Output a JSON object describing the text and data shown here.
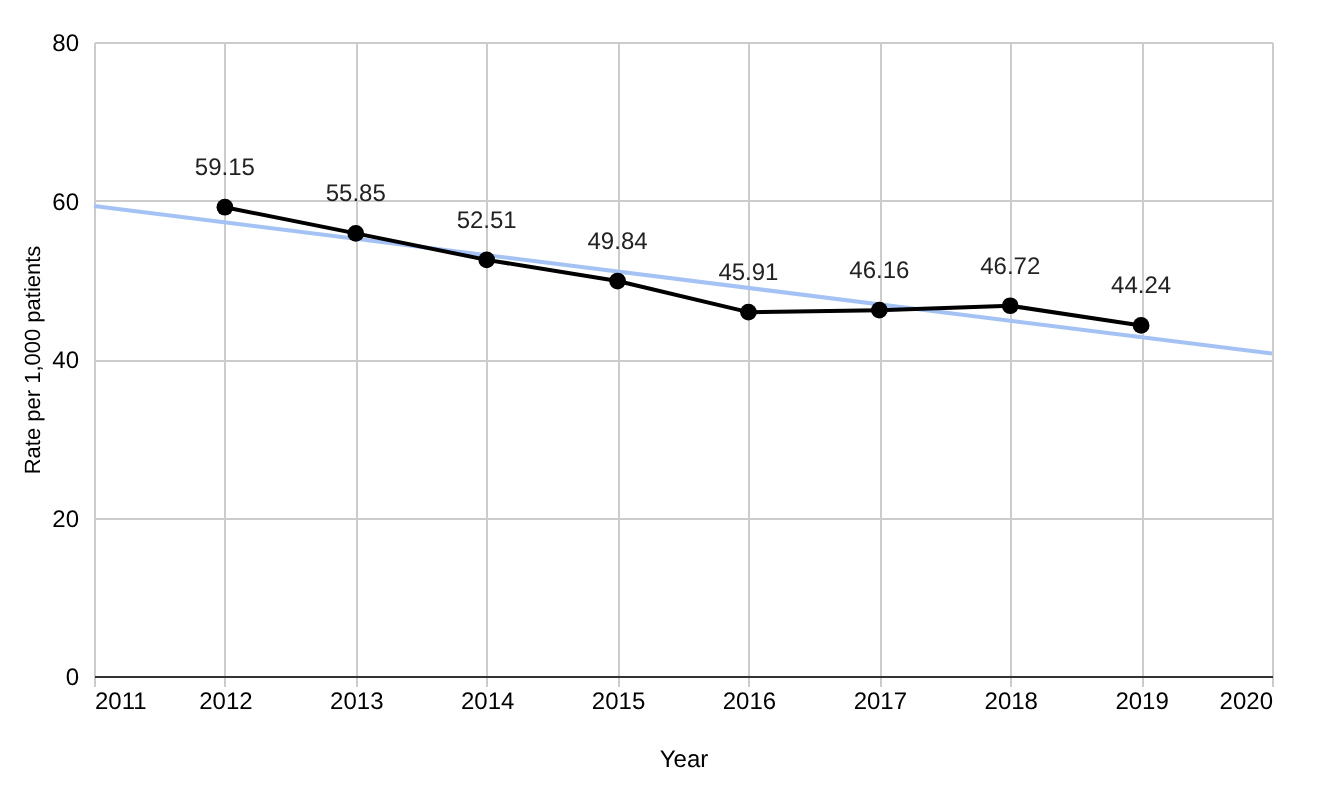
{
  "chart_data": {
    "type": "line",
    "xlabel": "Year",
    "ylabel": "Rate per 1,000 patients",
    "x": [
      2012,
      2013,
      2014,
      2015,
      2016,
      2017,
      2018,
      2019
    ],
    "series": [
      {
        "color": "#a4c2f4",
        "marker": "none",
        "x": [
          2011,
          2020
        ],
        "values": [
          59.3,
          40.7
        ]
      },
      {
        "color": "#000000",
        "marker": "circle",
        "values": [
          59.15,
          55.85,
          52.51,
          49.84,
          45.91,
          46.16,
          46.72,
          44.24
        ],
        "data_labels": true
      }
    ],
    "xlim": [
      2011,
      2020
    ],
    "xticks": [
      2011,
      2012,
      2013,
      2014,
      2015,
      2016,
      2017,
      2018,
      2019,
      2020
    ],
    "ylim": [
      0,
      80
    ],
    "yticks": [
      0,
      20,
      40,
      60,
      80
    ],
    "grid": true
  }
}
